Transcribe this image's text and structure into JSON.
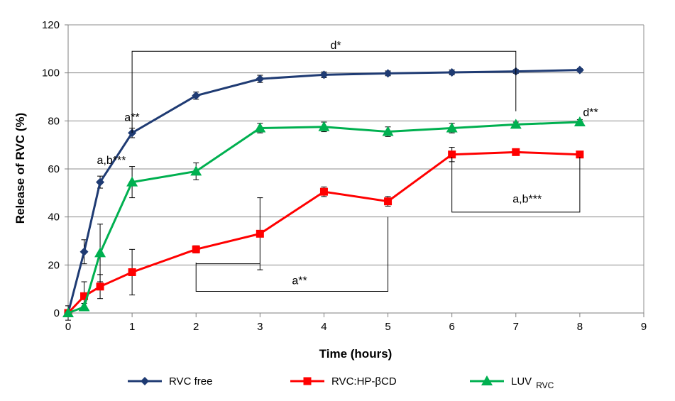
{
  "chart_data": {
    "type": "line",
    "xlabel": "Time (hours)",
    "ylabel": "Release of RVC (%)",
    "xlim": [
      0,
      9
    ],
    "ylim": [
      0,
      120
    ],
    "xticks": [
      "0",
      "1",
      "2",
      "3",
      "4",
      "5",
      "6",
      "7",
      "8",
      "9"
    ],
    "yticks": [
      "0",
      "20",
      "40",
      "60",
      "80",
      "100",
      "120"
    ],
    "grid": "horizontal",
    "legend_position": "bottom",
    "series": [
      {
        "name": "RVC free",
        "color": "#1f3b73",
        "marker": "diamond",
        "x": [
          0,
          0.25,
          0.5,
          1,
          2,
          3,
          4,
          5,
          6,
          7,
          8
        ],
        "y": [
          0,
          25.5,
          54.5,
          75,
          90.5,
          97.5,
          99.2,
          99.8,
          100.2,
          100.6,
          101.2
        ],
        "err": [
          3,
          5,
          2.5,
          2,
          1.5,
          1.5,
          1.2,
          1,
          1,
          0.8,
          0.6
        ]
      },
      {
        "name": "RVC:HP-βCD",
        "color": "#ff0000",
        "marker": "square",
        "x": [
          0,
          0.25,
          0.5,
          1,
          2,
          3,
          4,
          5,
          6,
          7,
          8
        ],
        "y": [
          0,
          7,
          11,
          17,
          26.5,
          33,
          50.5,
          46.5,
          66,
          67,
          66
        ],
        "err": [
          0,
          6,
          5,
          9.5,
          1.5,
          15,
          2,
          2,
          3,
          1,
          1
        ]
      },
      {
        "name": "LUV",
        "name_subscript": "RVC",
        "color": "#00b050",
        "marker": "triangle",
        "x": [
          0,
          0.25,
          0.5,
          1,
          2,
          3,
          4,
          5,
          6,
          7,
          8
        ],
        "y": [
          0,
          2.5,
          25,
          54.5,
          59,
          77,
          77.5,
          75.5,
          77,
          78.5,
          79.5
        ],
        "err": [
          0,
          1.5,
          12,
          6.5,
          3.5,
          2,
          2,
          2,
          2,
          1,
          1
        ]
      }
    ],
    "annotations": [
      {
        "text": "a,b***",
        "x": 0.45,
        "y": 62
      },
      {
        "text": "a**",
        "x": 0.88,
        "y": 80
      },
      {
        "text": "d*",
        "x": 4.1,
        "y": 110
      },
      {
        "text": "d**",
        "x": 8.05,
        "y": 82
      },
      {
        "text": "a**",
        "x": 3.5,
        "y": 12
      },
      {
        "text": "a,b***",
        "x": 6.95,
        "y": 46
      }
    ],
    "brackets": [
      {
        "from": 1,
        "to": 7,
        "top": 109,
        "left_end": 75,
        "right_end": 84
      },
      {
        "from": 2,
        "to": 5,
        "bottom": 9,
        "left_end": 21,
        "right_end": 40
      },
      {
        "from": 6,
        "to": 8,
        "bottom": 42,
        "left_end": 65,
        "right_end": 65
      }
    ]
  }
}
